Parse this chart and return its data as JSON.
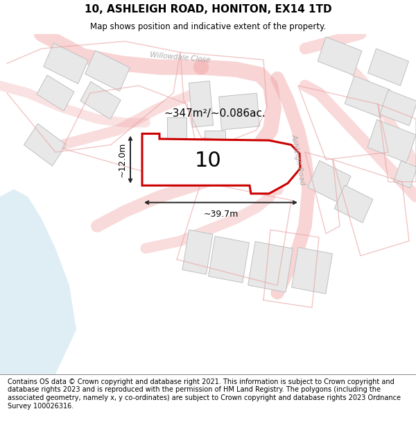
{
  "title": "10, ASHLEIGH ROAD, HONITON, EX14 1TD",
  "subtitle": "Map shows position and indicative extent of the property.",
  "footer": "Contains OS data © Crown copyright and database right 2021. This information is subject to Crown copyright and database rights 2023 and is reproduced with the permission of HM Land Registry. The polygons (including the associated geometry, namely x, y co-ordinates) are subject to Crown copyright and database rights 2023 Ordnance Survey 100026316.",
  "area_label": "~347m²/~0.086ac.",
  "number_label": "10",
  "dim_width": "~39.7m",
  "dim_height": "~12.0m",
  "bg_color": "#ffffff",
  "highlight_color": "#cc0000",
  "building_fill": "#e8e8e8",
  "building_edge": "#c0c0c0",
  "water_color": "#d0e8f0",
  "road_line_color": "#f0a0a0",
  "road_fill": "#f5f5f5",
  "road_outline": "#e8a0a0",
  "text_road_color": "#aaaaaa",
  "dim_color": "#222222"
}
